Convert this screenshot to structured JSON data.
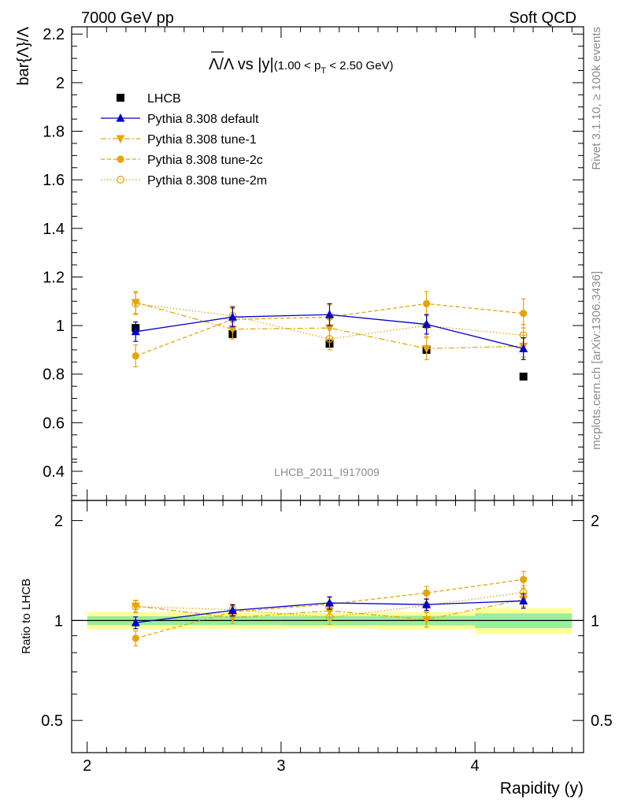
{
  "header": {
    "left": "7000 GeV pp",
    "right": "Soft QCD"
  },
  "side_text": {
    "rivet": "Rivet 3.1.10, ≥ 100k events",
    "source": "mcplots.cern.ch [arXiv:1306.3436]"
  },
  "chart_data": {
    "type": "scatter",
    "title_main": "Λ/Λ vs |y|",
    "title_cut_prefix": "(1.00 < p",
    "title_cut_sub": "T",
    "title_cut_suffix": " < 2.50 GeV)",
    "watermark": "LHCB_2011_I917009",
    "xlabel": "Rapidity (y)",
    "ylabel": "bar{Λ}/Λ",
    "ratio_ylabel": "Ratio to LHCB",
    "xlim": [
      1.92,
      4.56
    ],
    "ylim": [
      0.28,
      2.23
    ],
    "ratio_ylim": [
      0.4,
      2.3
    ],
    "x_ticks": [
      "2",
      "3",
      "4"
    ],
    "y_ticks": [
      "0.4",
      "0.6",
      "0.8",
      "1",
      "1.2",
      "1.4",
      "1.6",
      "1.8",
      "2",
      "2.2"
    ],
    "ratio_ticks": [
      "0.5",
      "1",
      "2"
    ],
    "x": [
      2.25,
      2.75,
      3.25,
      3.75,
      4.25
    ],
    "bin_edges": [
      2.0,
      2.5,
      3.0,
      3.5,
      4.0,
      4.5
    ],
    "data": {
      "name": "LHCB",
      "values": [
        0.99,
        0.965,
        0.925,
        0.9,
        0.79
      ],
      "band_inner": [
        0.03,
        0.03,
        0.03,
        0.03,
        0.04
      ],
      "band_outer": [
        0.06,
        0.055,
        0.05,
        0.055,
        0.07
      ]
    },
    "series": [
      {
        "name": "Pythia 8.308 default",
        "color": "#0000cc",
        "dash": "",
        "marker": "triangle-up",
        "values": [
          0.975,
          1.035,
          1.045,
          1.005,
          0.905
        ],
        "errors": [
          0.04,
          0.04,
          0.045,
          0.04,
          0.045
        ],
        "ratio": [
          0.985,
          1.073,
          1.13,
          1.117,
          1.146
        ]
      },
      {
        "name": "Pythia 8.308 tune-1",
        "color": "#e5a50a",
        "dash": "7 3 2 3",
        "marker": "triangle-down",
        "values": [
          1.095,
          0.985,
          0.99,
          0.905,
          0.915
        ],
        "errors": [
          0.045,
          0.04,
          0.045,
          0.045,
          0.045
        ],
        "ratio": [
          1.106,
          1.02,
          1.07,
          1.006,
          1.158
        ]
      },
      {
        "name": "Pythia 8.308 tune-2c",
        "color": "#e5a50a",
        "dash": "5 3",
        "marker": "circle",
        "values": [
          0.875,
          1.025,
          1.035,
          1.09,
          1.05
        ],
        "errors": [
          0.045,
          0.045,
          0.05,
          0.05,
          0.06
        ],
        "ratio": [
          0.884,
          1.062,
          1.119,
          1.211,
          1.329
        ]
      },
      {
        "name": "Pythia 8.308 tune-2m",
        "color": "#e5a50a",
        "dash": "1.5 2.5",
        "marker": "circle-open",
        "values": [
          1.09,
          1.04,
          0.945,
          1.0,
          0.96
        ],
        "errors": [
          0.045,
          0.04,
          0.045,
          0.045,
          0.045
        ],
        "ratio": [
          1.101,
          1.078,
          1.022,
          1.111,
          1.215
        ]
      }
    ],
    "legend_position": "top-left"
  }
}
